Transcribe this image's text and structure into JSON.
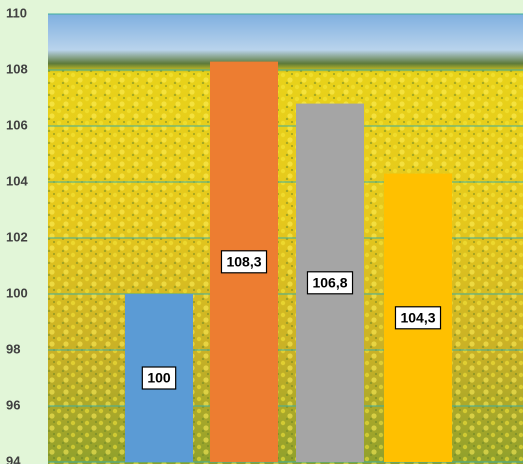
{
  "chart_data": {
    "type": "bar",
    "categories": [
      null,
      null,
      null,
      null
    ],
    "values": [
      100,
      108.3,
      106.8,
      104.3
    ],
    "value_labels": [
      "100",
      "108,3",
      "106,8",
      "104,3"
    ],
    "colors": [
      "#5b9bd5",
      "#ed7d31",
      "#a5a5a5",
      "#ffc000"
    ],
    "ylim": [
      94,
      110
    ],
    "yticks": [
      94,
      96,
      98,
      100,
      102,
      104,
      106,
      108,
      110
    ],
    "grid": true,
    "grid_color": "#3fae9e"
  }
}
